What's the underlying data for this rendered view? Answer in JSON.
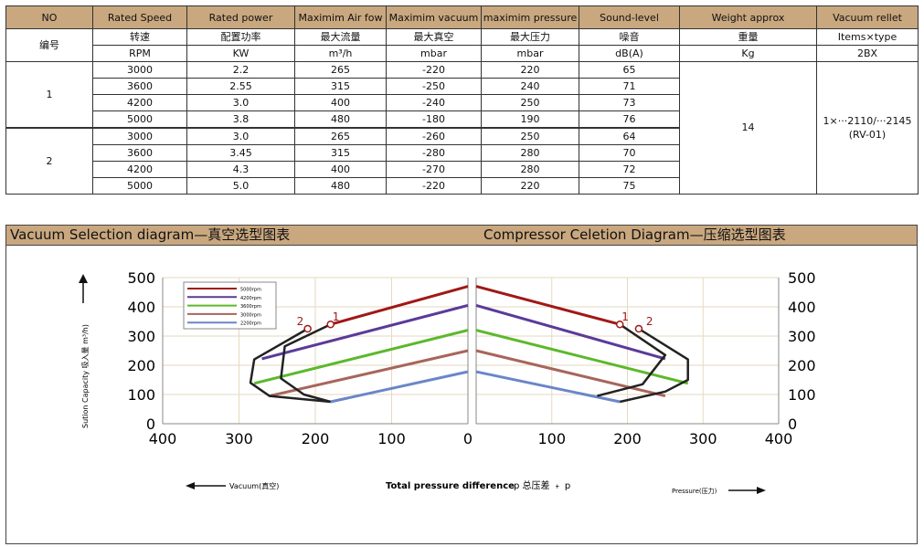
{
  "table": {
    "headers": [
      "NO",
      "Rated Speed",
      "Rated power",
      "Maximim Air fow",
      "Maximim vacuum",
      "maximim pressure",
      "Sound-level",
      "Weight approx",
      "Vacuum rellet"
    ],
    "headers_cn": [
      "编号",
      "转速",
      "配置功率",
      "最大流量",
      "最大真空",
      "最大压力",
      "噪音",
      "重量",
      "Items×type"
    ],
    "units": [
      "RPM",
      "KW",
      "m³/h",
      "mbar",
      "mbar",
      "dB(A)",
      "Kg",
      "2BX"
    ],
    "groups": [
      {
        "no": "1",
        "rows": [
          [
            "3000",
            "2.2",
            "265",
            "-220",
            "220",
            "65"
          ],
          [
            "3600",
            "2.55",
            "315",
            "-250",
            "240",
            "71"
          ],
          [
            "4200",
            "3.0",
            "400",
            "-240",
            "250",
            "73"
          ],
          [
            "5000",
            "3.8",
            "480",
            "-180",
            "190",
            "76"
          ]
        ]
      },
      {
        "no": "2",
        "rows": [
          [
            "3000",
            "3.0",
            "265",
            "-260",
            "250",
            "64"
          ],
          [
            "3600",
            "3.45",
            "315",
            "-280",
            "280",
            "70"
          ],
          [
            "4200",
            "4.3",
            "400",
            "-270",
            "280",
            "72"
          ],
          [
            "5000",
            "5.0",
            "480",
            "-220",
            "220",
            "75"
          ]
        ]
      }
    ],
    "weight": "14",
    "vacuum_relief_line1": "1×···2110/···2145",
    "vacuum_relief_line2": "(RV-01)"
  },
  "panel": {
    "left_title": "Vacuum Selection diagram—真空选型图表",
    "right_title": "Compressor Celetion Diagram—压缩选型图表"
  },
  "chart_data": {
    "type": "line",
    "ylabel": "Sution Capacity 吸入量 m³/h)",
    "xlabel_center": "Total pressure difference",
    "xlabel_center_cn": "p 总压差 ﹢ p",
    "xlabel_left": "Vacuum(真空)",
    "xlabel_right": "Pressure(压力)",
    "x_ticks_left": [
      "400",
      "300",
      "200",
      "100",
      "0"
    ],
    "x_ticks_right": [
      "100",
      "200",
      "300",
      "400"
    ],
    "y_ticks": [
      "0",
      "100",
      "200",
      "300",
      "400",
      "500"
    ],
    "xlim": [
      0,
      400
    ],
    "ylim": [
      0,
      500
    ],
    "legend_position": "top-left",
    "series": [
      {
        "name": "5000rpm",
        "color": "#a01818",
        "vacuum_max": 180,
        "pressure_max": 190,
        "q0": 470,
        "q_end": 340
      },
      {
        "name": "4200rpm",
        "color": "#5b3a99",
        "vacuum_max": 270,
        "pressure_max": 250,
        "q0": 405,
        "q_end": 222
      },
      {
        "name": "3600rpm",
        "color": "#5cb82c",
        "vacuum_max": 280,
        "pressure_max": 280,
        "q0": 320,
        "q_end": 138
      },
      {
        "name": "3000rpm",
        "color": "#a8655b",
        "vacuum_max": 260,
        "pressure_max": 250,
        "q0": 250,
        "q_end": 95
      },
      {
        "name": "2200rpm",
        "color": "#6a86c8",
        "vacuum_max": 180,
        "pressure_max": 190,
        "q0": 178,
        "q_end": 75
      }
    ],
    "envelope_left": [
      [
        210,
        325
      ],
      [
        280,
        220
      ],
      [
        285,
        140
      ],
      [
        260,
        95
      ],
      [
        180,
        75
      ]
    ],
    "envelope_left_inner": [
      [
        180,
        340
      ],
      [
        240,
        265
      ],
      [
        245,
        155
      ],
      [
        215,
        100
      ],
      [
        180,
        75
      ]
    ],
    "envelope_right": [
      [
        215,
        325
      ],
      [
        280,
        220
      ],
      [
        280,
        150
      ],
      [
        250,
        110
      ],
      [
        190,
        75
      ]
    ],
    "envelope_right_inner": [
      [
        190,
        340
      ],
      [
        250,
        235
      ],
      [
        220,
        135
      ],
      [
        160,
        95
      ]
    ],
    "markers_left": [
      {
        "label": "1",
        "x": 180,
        "y": 340
      },
      {
        "label": "2",
        "x": 210,
        "y": 325
      }
    ],
    "markers_right": [
      {
        "label": "1",
        "x": 190,
        "y": 340
      },
      {
        "label": "2",
        "x": 215,
        "y": 325
      }
    ]
  }
}
